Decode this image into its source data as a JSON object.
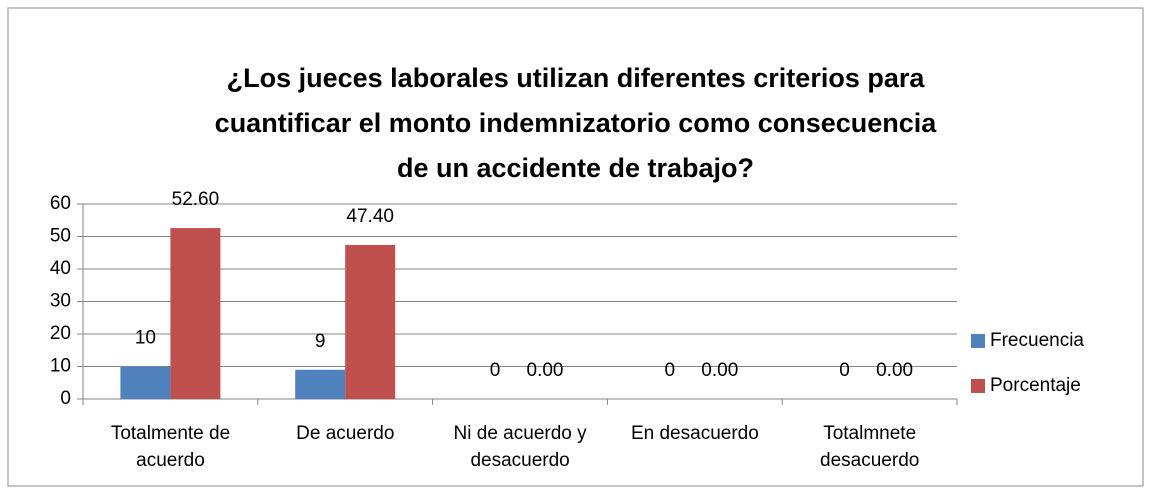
{
  "chart_data": {
    "type": "bar",
    "title": "¿Los jueces laborales utilizan diferentes criterios para\ncuantificar el monto indemnizatorio como consecuencia\nde un accidente de trabajo?",
    "categories": [
      "Totalmente de\nacuerdo",
      "De acuerdo",
      "Ni de acuerdo y\ndesacuerdo",
      "En desacuerdo",
      "Totalmnete\ndesacuerdo"
    ],
    "series": [
      {
        "name": "Frecuencia",
        "color": "#4f81bd",
        "values": [
          10,
          9,
          0,
          0,
          0
        ]
      },
      {
        "name": "Porcentaje",
        "color": "#c0504d",
        "values": [
          52.6,
          47.4,
          0,
          0,
          0
        ],
        "value_labels": [
          "52.60",
          "47.40",
          "0.00",
          "0.00",
          "0.00"
        ]
      }
    ],
    "ylim": [
      0,
      60
    ],
    "yticks": [
      0,
      10,
      20,
      30,
      40,
      50,
      60
    ],
    "grid": true,
    "legend": "right"
  }
}
